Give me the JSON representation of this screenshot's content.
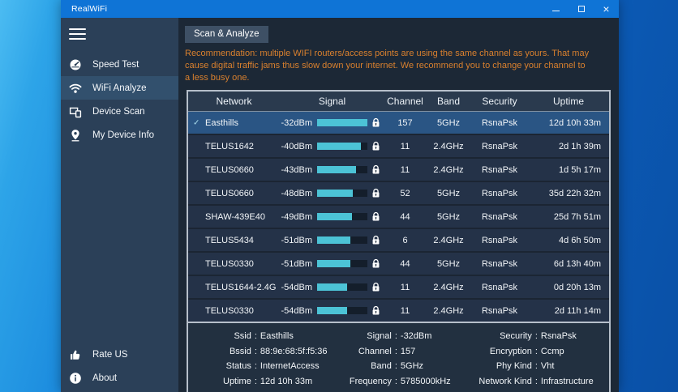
{
  "window": {
    "title": "RealWiFi",
    "controls": {
      "minimize": "minimize",
      "maximize": "maximize",
      "close": "close"
    }
  },
  "sidebar": {
    "items": [
      {
        "id": "speed-test",
        "label": "Speed Test",
        "icon": "speedometer-icon",
        "selected": false
      },
      {
        "id": "wifi-analyze",
        "label": "WiFi Analyze",
        "icon": "wifi-icon",
        "selected": true
      },
      {
        "id": "device-scan",
        "label": "Device Scan",
        "icon": "devices-icon",
        "selected": false
      },
      {
        "id": "my-device-info",
        "label": "My Device Info",
        "icon": "map-pin-icon",
        "selected": false
      }
    ],
    "bottom_items": [
      {
        "id": "rate-us",
        "label": "Rate US",
        "icon": "thumbs-up-icon",
        "selected": false
      },
      {
        "id": "about",
        "label": "About",
        "icon": "info-icon",
        "selected": false
      }
    ]
  },
  "main": {
    "scan_button_label": "Scan & Analyze",
    "recommendation": "Recommendation: multiple WIFI routers/access points are using the same channel as yours. That may cause digital traffic jams thus slow down your internet. We recommend you to change your channel to a less busy one.",
    "table": {
      "columns": [
        "Network",
        "Signal",
        "Channel",
        "Band",
        "Security",
        "Uptime"
      ],
      "rows": [
        {
          "network": "Easthills",
          "signal": "-32dBm",
          "signal_pct": 100,
          "secured": true,
          "channel": "157",
          "band": "5GHz",
          "security": "RsnaPsk",
          "uptime": "12d 10h 33m",
          "selected": true
        },
        {
          "network": "TELUS1642",
          "signal": "-40dBm",
          "signal_pct": 87,
          "secured": true,
          "channel": "11",
          "band": "2.4GHz",
          "security": "RsnaPsk",
          "uptime": "2d 1h 39m",
          "selected": false
        },
        {
          "network": "TELUS0660",
          "signal": "-43dBm",
          "signal_pct": 78,
          "secured": true,
          "channel": "11",
          "band": "2.4GHz",
          "security": "RsnaPsk",
          "uptime": "1d 5h 17m",
          "selected": false
        },
        {
          "network": "TELUS0660",
          "signal": "-48dBm",
          "signal_pct": 71,
          "secured": true,
          "channel": "52",
          "band": "5GHz",
          "security": "RsnaPsk",
          "uptime": "35d 22h 32m",
          "selected": false
        },
        {
          "network": "SHAW-439E40",
          "signal": "-49dBm",
          "signal_pct": 70,
          "secured": true,
          "channel": "44",
          "band": "5GHz",
          "security": "RsnaPsk",
          "uptime": "25d 7h 51m",
          "selected": false
        },
        {
          "network": "TELUS5434",
          "signal": "-51dBm",
          "signal_pct": 66,
          "secured": true,
          "channel": "6",
          "band": "2.4GHz",
          "security": "RsnaPsk",
          "uptime": "4d 6h 50m",
          "selected": false
        },
        {
          "network": "TELUS0330",
          "signal": "-51dBm",
          "signal_pct": 66,
          "secured": true,
          "channel": "44",
          "band": "5GHz",
          "security": "RsnaPsk",
          "uptime": "6d 13h 40m",
          "selected": false
        },
        {
          "network": "TELUS1644-2.4G",
          "signal": "-54dBm",
          "signal_pct": 60,
          "secured": true,
          "channel": "11",
          "band": "2.4GHz",
          "security": "RsnaPsk",
          "uptime": "0d 20h 13m",
          "selected": false
        },
        {
          "network": "TELUS0330",
          "signal": "-54dBm",
          "signal_pct": 60,
          "secured": true,
          "channel": "11",
          "band": "2.4GHz",
          "security": "RsnaPsk",
          "uptime": "2d 11h 14m",
          "selected": false
        }
      ]
    },
    "details": {
      "columns": [
        [
          {
            "label": "Ssid",
            "value": "Easthills"
          },
          {
            "label": "Bssid",
            "value": "88:9e:68:5f:f5:36"
          },
          {
            "label": "Status",
            "value": "InternetAccess"
          },
          {
            "label": "Uptime",
            "value": "12d 10h 33m"
          }
        ],
        [
          {
            "label": "Signal",
            "value": "-32dBm"
          },
          {
            "label": "Channel",
            "value": "157"
          },
          {
            "label": "Band",
            "value": "5GHz"
          },
          {
            "label": "Frequency",
            "value": "5785000kHz"
          }
        ],
        [
          {
            "label": "Security",
            "value": "RsnaPsk"
          },
          {
            "label": "Encryption",
            "value": "Ccmp"
          },
          {
            "label": "Phy Kind",
            "value": "Vht"
          },
          {
            "label": "Network Kind",
            "value": "Infrastructure"
          }
        ]
      ]
    }
  },
  "colors": {
    "titlebar_accent": "#0f74d6",
    "desktop_light": "#4cbcf2",
    "desktop_dark": "#0a50a6",
    "sidebar_bg": "#2b4058",
    "sidebar_selected_bg": "#32506d",
    "content_bg": "#1c2836",
    "table_header_bg": "#2a3a4e",
    "row_bg": "#243248",
    "row_selected_bg": "#2a5584",
    "signal_bar_fill": "#4cc3d6",
    "signal_bar_track": "#141e2b",
    "recommendation_text": "#d9802e",
    "scan_button_bg": "#3e5065",
    "table_border": "#b6bfca"
  }
}
